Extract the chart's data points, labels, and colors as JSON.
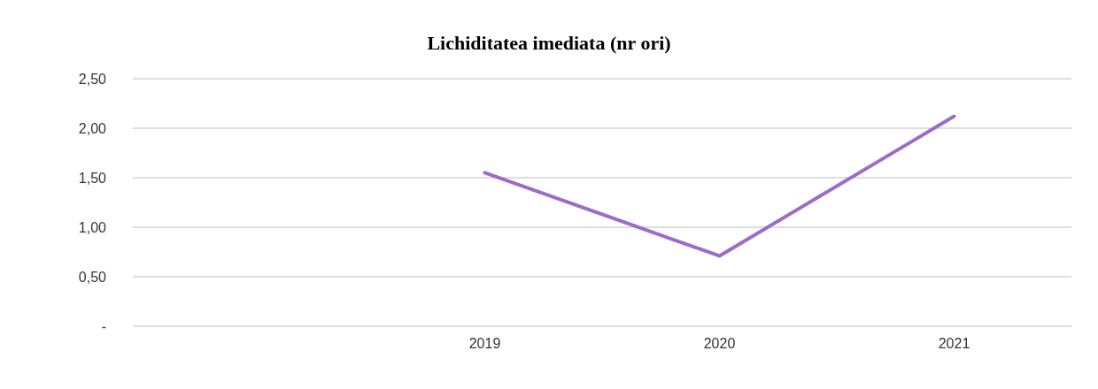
{
  "chart_data": {
    "type": "line",
    "title": "Lichiditatea imediata (nr ori)",
    "categories": [
      null,
      "2019",
      "2020",
      "2021"
    ],
    "series": [
      {
        "color": "#9b6cc8",
        "values": [
          null,
          1.55,
          0.71,
          2.12
        ]
      }
    ],
    "ylim": [
      0,
      2.5
    ],
    "yticks": [
      {
        "value": 0,
        "label": "-"
      },
      {
        "value": 0.5,
        "label": "0,50"
      },
      {
        "value": 1,
        "label": "1,00"
      },
      {
        "value": 1.5,
        "label": "1,50"
      },
      {
        "value": 2,
        "label": "2,00"
      },
      {
        "value": 2.5,
        "label": "2,50"
      }
    ],
    "grid": "y",
    "marker": "none",
    "line_style": "solid"
  }
}
